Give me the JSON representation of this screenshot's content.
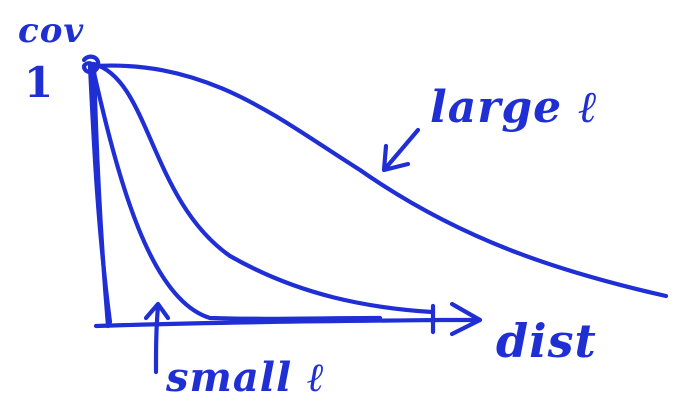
{
  "labels": {
    "y_axis": "cov",
    "y_tick": "1",
    "x_axis": "dist",
    "large": "large ℓ",
    "small": "small ℓ"
  },
  "colors": {
    "ink": "#1f2fd4",
    "background": "#ffffff"
  }
}
